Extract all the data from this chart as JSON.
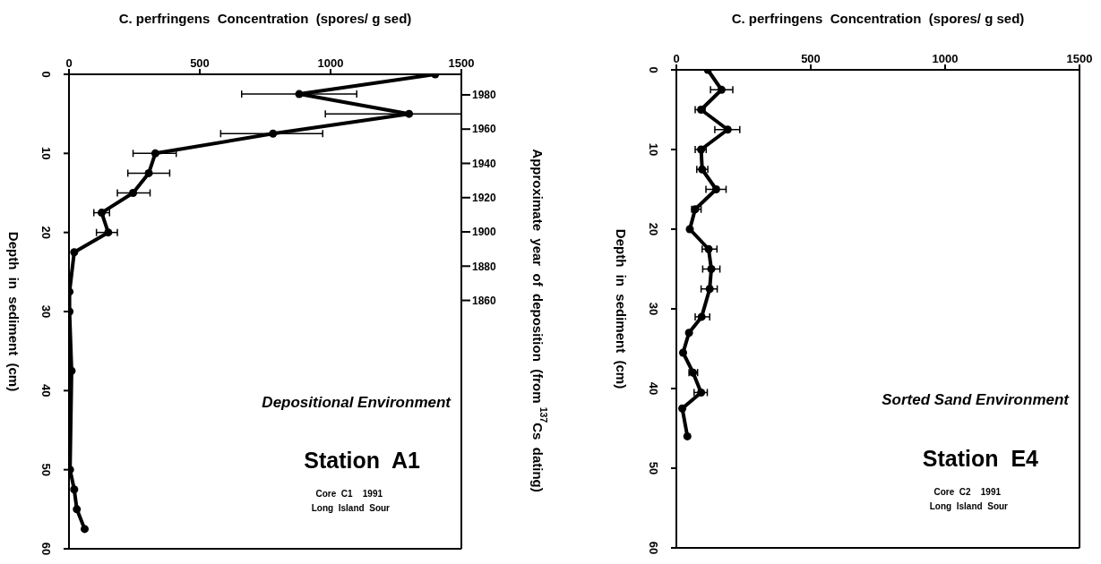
{
  "chart_data": [
    {
      "type": "line",
      "xlabel": "C. perfringens  Concentration  (spores/ g sed)",
      "ylabel": "Depth  in  sediment  (cm)",
      "y2label": "Approximate  year  of  deposition  (from $^{137}$Cs  dating)",
      "marker": "circle",
      "line_style": "solid",
      "xlim": [
        0,
        1500
      ],
      "xticks": [
        0,
        500,
        1000,
        1500
      ],
      "ylim": [
        60,
        0
      ],
      "yticks": [
        0,
        10,
        20,
        30,
        40,
        50,
        60
      ],
      "y2lim": [
        1715,
        1992
      ],
      "y2ticks": [
        1980,
        1960,
        1940,
        1920,
        1900,
        1880,
        1860
      ],
      "series": [
        {
          "color": "#000000",
          "x": [
            1400,
            880,
            1300,
            780,
            330,
            305,
            245,
            125,
            150,
            20,
            2,
            2,
            10,
            4,
            20,
            30,
            60
          ],
          "values": [
            0,
            2.5,
            5,
            7.5,
            10,
            12.5,
            15,
            17.5,
            20,
            22.5,
            27.5,
            30,
            37.5,
            50,
            52.5,
            55,
            57.5
          ],
          "xerrors": [
            null,
            [
              660,
              1100
            ],
            [
              980,
              1500
            ],
            [
              580,
              970
            ],
            [
              245,
              410
            ],
            [
              225,
              385
            ],
            [
              185,
              310
            ],
            [
              95,
              155
            ],
            [
              105,
              185
            ],
            null,
            null,
            null,
            null,
            null,
            null,
            null,
            null
          ]
        }
      ],
      "annotations": [
        "Depositional Environment",
        "Station  A1",
        "Core  C1    1991",
        "Long  Island  Sour"
      ]
    },
    {
      "type": "line",
      "xlabel": "C. perfringens  Concentration  (spores/ g sed)",
      "ylabel": "Depth  in  sediment  (cm)",
      "marker": "circle",
      "line_style": "solid",
      "xlim": [
        0,
        1500
      ],
      "xticks": [
        0,
        500,
        1000,
        1500
      ],
      "ylim": [
        60,
        0
      ],
      "yticks": [
        0,
        10,
        20,
        30,
        40,
        50,
        60
      ],
      "series": [
        {
          "color": "#000000",
          "x": [
            117,
            168,
            92,
            191,
            92,
            96,
            148,
            70,
            50,
            120,
            130,
            124,
            94,
            47,
            25,
            62,
            92,
            22,
            41
          ],
          "values": [
            0,
            2.5,
            5,
            7.5,
            10,
            12.5,
            15,
            17.5,
            20,
            22.5,
            25,
            27.5,
            31,
            33,
            35.5,
            38,
            40.5,
            42.5,
            46
          ],
          "xerrors": [
            null,
            [
              127,
              210
            ],
            [
              70,
              107
            ],
            [
              143,
              236
            ],
            [
              70,
              111
            ],
            [
              76,
              117
            ],
            [
              110,
              185
            ],
            [
              57,
              92
            ],
            null,
            [
              96,
              151
            ],
            [
              98,
              162
            ],
            [
              92,
              152
            ],
            [
              70,
              124
            ],
            null,
            null,
            [
              47,
              79
            ],
            [
              66,
              115
            ],
            null,
            null
          ]
        }
      ],
      "annotations": [
        "Sorted Sand Environment",
        "Station  E4",
        "Core  C2    1991",
        "Long  Island  Sour"
      ]
    }
  ]
}
